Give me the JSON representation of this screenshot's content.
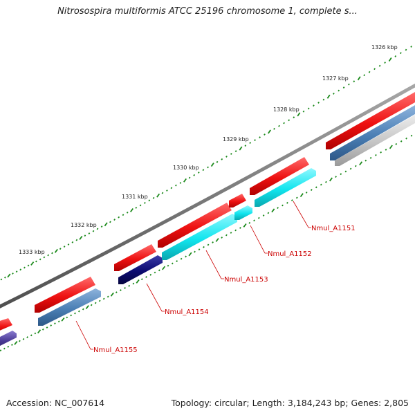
{
  "title": "Nitrosospira multiformis ATCC 25196 chromosome 1, complete s...",
  "footer": {
    "accession": "Accession: NC_007614",
    "info": "Topology: circular; Length: 3,184,243 bp; Genes: 2,805"
  },
  "colors": {
    "backbone": "#7a7a7a",
    "tick_dot": "#1b8a1b",
    "forward_gene": "#ee1111",
    "cyan_gene": "#11e5ee",
    "steel_gene": "#4b7fb5",
    "navy_gene": "#0b0b70",
    "violet_gene": "#4a3a96",
    "label": "#cc0000"
  },
  "scale_labels": [
    {
      "text": "1326 kbp",
      "kbp": 1326
    },
    {
      "text": "1327 kbp",
      "kbp": 1327
    },
    {
      "text": "1328 kbp",
      "kbp": 1328
    },
    {
      "text": "1329 kbp",
      "kbp": 1329
    },
    {
      "text": "1330 kbp",
      "kbp": 1330
    },
    {
      "text": "1331 kbp",
      "kbp": 1331
    },
    {
      "text": "1332 kbp",
      "kbp": 1332
    },
    {
      "text": "1333 kbp",
      "kbp": 1333
    }
  ],
  "genes": [
    {
      "name": "Nmul_A1151",
      "strand": "reverse",
      "color": "cyan"
    },
    {
      "name": "Nmul_A1152",
      "strand": "reverse",
      "color": "cyan"
    },
    {
      "name": "Nmul_A1153",
      "strand": "reverse",
      "color": "cyan"
    },
    {
      "name": "Nmul_A1154",
      "strand": "reverse",
      "color": "navy"
    },
    {
      "name": "Nmul_A1155",
      "strand": "reverse",
      "color": "steel"
    }
  ]
}
